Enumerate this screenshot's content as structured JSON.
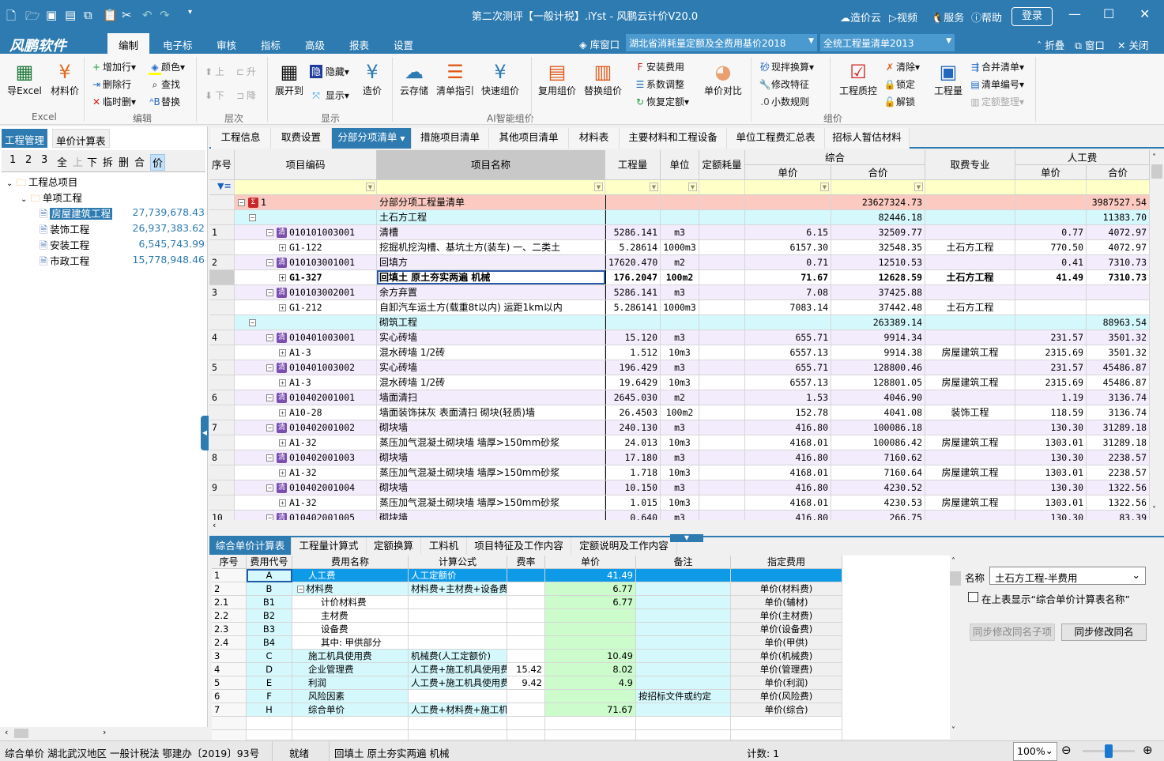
{
  "title": "第二次测评【一般计税】.iYst - 风鹏云计价V20.0",
  "quick_access": [
    "new-icon",
    "open-icon",
    "save-icon",
    "save-as-icon",
    "copy-icon",
    "paste-icon",
    "cut-icon",
    "undo-icon",
    "redo-icon",
    "customize-icon"
  ],
  "top_right": {
    "cloud": "造价云",
    "video": "视频",
    "service": "服务",
    "help": "帮助",
    "login": "登录"
  },
  "logo": "风鹏软件",
  "menu_tabs": [
    "编制",
    "电子标",
    "审核",
    "指标",
    "高级",
    "报表",
    "设置"
  ],
  "active_menu": "编制",
  "lib_window": "库窗口",
  "quota_combo": "湖北省消耗量定额及全费用基价2018",
  "bill_combo": "全统工程量清单2013",
  "ribbon_right": {
    "fold": "折叠",
    "window": "窗口",
    "close": "关闭"
  },
  "ribbon": {
    "export_excel": "导Excel",
    "material_price": "材料价",
    "group_excel": "Excel",
    "add_row": "增加行",
    "delete_row": "删除行",
    "temp_delete": "临时删",
    "color": "颜色",
    "find": "查找",
    "replace": "替换",
    "group_edit": "编辑",
    "up": "上",
    "down": "下",
    "raise": "升",
    "lower": "降",
    "group_level": "层次",
    "expand_to": "展开到",
    "hide": "隐藏",
    "display": "显示",
    "price": "造价",
    "group_display": "显示",
    "cloud_store": "云存储",
    "bill_guide": "清单指引",
    "quick_price": "快速组价",
    "group_ai": "AI智能组价",
    "reuse_price": "复用组价",
    "replace_price": "替换组价",
    "install_fee": "安装费用",
    "coef_adjust": "系数调整",
    "restore_quota": "恢复定额",
    "price_compare": "单价对比",
    "mix_convert": "现拌换算",
    "modify_feature": "修改特征",
    "decimal_rule": "小数规则",
    "quality_ctrl": "工程质控",
    "clear": "清除",
    "lock": "锁定",
    "unlock": "解锁",
    "quantity": "工程量",
    "merge_bill": "合并清单",
    "bill_number": "清单编号",
    "quota_tidy": "定额整理",
    "group_price": "组价"
  },
  "left": {
    "tabs": [
      "工程管理",
      "单价计算表"
    ],
    "tools": [
      "1",
      "2",
      "3",
      "全",
      "上",
      "下",
      "拆",
      "删",
      "合",
      "价"
    ],
    "tree": [
      {
        "label": "工程总项目",
        "level": 0,
        "type": "folder",
        "amount": ""
      },
      {
        "label": "单项工程",
        "level": 1,
        "type": "folder",
        "amount": ""
      },
      {
        "label": "房屋建筑工程",
        "level": 2,
        "type": "file",
        "amount": "27,739,678.43",
        "selected": true
      },
      {
        "label": "装饰工程",
        "level": 2,
        "type": "file",
        "amount": "26,937,383.62"
      },
      {
        "label": "安装工程",
        "level": 2,
        "type": "file",
        "amount": "6,545,743.99"
      },
      {
        "label": "市政工程",
        "level": 2,
        "type": "file",
        "amount": "15,778,948.46"
      }
    ]
  },
  "main_tabs": [
    "工程信息",
    "取费设置",
    "分部分项清单",
    "措施项目清单",
    "其他项目清单",
    "材料表",
    "主要材料和工程设备",
    "单位工程费汇总表",
    "招标人暂估材料"
  ],
  "active_main_tab": "分部分项清单",
  "grid": {
    "headers": {
      "seq": "序号",
      "code": "项目编码",
      "name": "项目名称",
      "qty": "工程量",
      "unit": "单位",
      "consume": "定额耗量",
      "composite": "综合",
      "labor": "人工费",
      "unit_price": "单价",
      "total": "合价",
      "fee_type": "取费专业"
    },
    "rows": [
      {
        "t": "total",
        "seq": "",
        "code": "1",
        "name": "分部分项工程量清单",
        "qty": "",
        "unit": "",
        "cu": "",
        "ct": "23627324.73",
        "fee": "",
        "lu": "",
        "lt": "3987527.54"
      },
      {
        "t": "sec",
        "seq": "",
        "code": "",
        "name": "土石方工程",
        "qty": "",
        "unit": "",
        "cu": "",
        "ct": "82446.18",
        "fee": "",
        "lu": "",
        "lt": "11383.70"
      },
      {
        "t": "qd",
        "seq": "1",
        "code": "010101003001",
        "name": "清槽",
        "qty": "5286.141",
        "unit": "m3",
        "cu": "6.15",
        "ct": "32509.77",
        "fee": "",
        "lu": "0.77",
        "lt": "4072.97"
      },
      {
        "t": "de",
        "seq": "",
        "code": "G1-122",
        "name": "挖掘机挖沟槽、基坑土方(装车) 一、二类土",
        "qty": "5.28614",
        "unit": "1000m3",
        "cu": "6157.30",
        "ct": "32548.35",
        "fee": "土石方工程",
        "lu": "770.50",
        "lt": "4072.97"
      },
      {
        "t": "qd",
        "seq": "2",
        "code": "010103001001",
        "name": "回填方",
        "qty": "17620.470",
        "unit": "m2",
        "cu": "0.71",
        "ct": "12510.53",
        "fee": "",
        "lu": "0.41",
        "lt": "7310.73"
      },
      {
        "t": "de",
        "sel": true,
        "seq": "",
        "code": "G1-327",
        "name": "回填土 原土夯实两遍 机械",
        "qty": "176.2047",
        "unit": "100m2",
        "cu": "71.67",
        "ct": "12628.59",
        "fee": "土石方工程",
        "lu": "41.49",
        "lt": "7310.73"
      },
      {
        "t": "qd",
        "seq": "3",
        "code": "010103002001",
        "name": "余方弃置",
        "qty": "5286.141",
        "unit": "m3",
        "cu": "7.08",
        "ct": "37425.88",
        "fee": "",
        "lu": "",
        "lt": ""
      },
      {
        "t": "de",
        "seq": "",
        "code": "G1-212",
        "name": "自卸汽车运土方(载重8t以内) 运距1km以内",
        "qty": "5.286141",
        "unit": "1000m3",
        "cu": "7083.14",
        "ct": "37442.48",
        "fee": "土石方工程",
        "lu": "",
        "lt": ""
      },
      {
        "t": "sec",
        "seq": "",
        "code": "",
        "name": "砌筑工程",
        "qty": "",
        "unit": "",
        "cu": "",
        "ct": "263389.14",
        "fee": "",
        "lu": "",
        "lt": "88963.54"
      },
      {
        "t": "qd",
        "seq": "4",
        "code": "010401003001",
        "name": "实心砖墙",
        "qty": "15.120",
        "unit": "m3",
        "cu": "655.71",
        "ct": "9914.34",
        "fee": "",
        "lu": "231.57",
        "lt": "3501.32"
      },
      {
        "t": "de",
        "seq": "",
        "code": "A1-3",
        "name": "混水砖墙 1/2砖",
        "qty": "1.512",
        "unit": "10m3",
        "cu": "6557.13",
        "ct": "9914.38",
        "fee": "房屋建筑工程",
        "lu": "2315.69",
        "lt": "3501.32"
      },
      {
        "t": "qd",
        "seq": "5",
        "code": "010401003002",
        "name": "实心砖墙",
        "qty": "196.429",
        "unit": "m3",
        "cu": "655.71",
        "ct": "128800.46",
        "fee": "",
        "lu": "231.57",
        "lt": "45486.87"
      },
      {
        "t": "de",
        "seq": "",
        "code": "A1-3",
        "name": "混水砖墙 1/2砖",
        "qty": "19.6429",
        "unit": "10m3",
        "cu": "6557.13",
        "ct": "128801.05",
        "fee": "房屋建筑工程",
        "lu": "2315.69",
        "lt": "45486.87"
      },
      {
        "t": "qd",
        "seq": "6",
        "code": "010402001001",
        "name": "墙面清扫",
        "qty": "2645.030",
        "unit": "m2",
        "cu": "1.53",
        "ct": "4046.90",
        "fee": "",
        "lu": "1.19",
        "lt": "3136.74"
      },
      {
        "t": "de",
        "seq": "",
        "code": "A10-28",
        "name": "墙面装饰抹灰 表面清扫 砌块(轻质)墙",
        "qty": "26.4503",
        "unit": "100m2",
        "cu": "152.78",
        "ct": "4041.08",
        "fee": "装饰工程",
        "lu": "118.59",
        "lt": "3136.74"
      },
      {
        "t": "qd",
        "seq": "7",
        "code": "010402001002",
        "name": "砌块墙",
        "qty": "240.130",
        "unit": "m3",
        "cu": "416.80",
        "ct": "100086.18",
        "fee": "",
        "lu": "130.30",
        "lt": "31289.18"
      },
      {
        "t": "de",
        "seq": "",
        "code": "A1-32",
        "name": "蒸压加气混凝土砌块墙 墙厚>150mm砂浆",
        "qty": "24.013",
        "unit": "10m3",
        "cu": "4168.01",
        "ct": "100086.42",
        "fee": "房屋建筑工程",
        "lu": "1303.01",
        "lt": "31289.18"
      },
      {
        "t": "qd",
        "seq": "8",
        "code": "010402001003",
        "name": "砌块墙",
        "qty": "17.180",
        "unit": "m3",
        "cu": "416.80",
        "ct": "7160.62",
        "fee": "",
        "lu": "130.30",
        "lt": "2238.57"
      },
      {
        "t": "de",
        "seq": "",
        "code": "A1-32",
        "name": "蒸压加气混凝土砌块墙 墙厚>150mm砂浆",
        "qty": "1.718",
        "unit": "10m3",
        "cu": "4168.01",
        "ct": "7160.64",
        "fee": "房屋建筑工程",
        "lu": "1303.01",
        "lt": "2238.57"
      },
      {
        "t": "qd",
        "seq": "9",
        "code": "010402001004",
        "name": "砌块墙",
        "qty": "10.150",
        "unit": "m3",
        "cu": "416.80",
        "ct": "4230.52",
        "fee": "",
        "lu": "130.30",
        "lt": "1322.56"
      },
      {
        "t": "de",
        "seq": "",
        "code": "A1-32",
        "name": "蒸压加气混凝土砌块墙 墙厚>150mm砂浆",
        "qty": "1.015",
        "unit": "10m3",
        "cu": "4168.01",
        "ct": "4230.53",
        "fee": "房屋建筑工程",
        "lu": "1303.01",
        "lt": "1322.56"
      },
      {
        "t": "qd",
        "seq": "10",
        "code": "010402001005",
        "name": "砌块墙",
        "qty": "0.640",
        "unit": "m3",
        "cu": "416.80",
        "ct": "266.75",
        "fee": "",
        "lu": "130.30",
        "lt": "83.39"
      }
    ]
  },
  "bottom_tabs": [
    "综合单价计算表",
    "工程量计算式",
    "定额换算",
    "工料机",
    "项目特征及工作内容",
    "定额说明及工作内容"
  ],
  "active_bottom_tab": "综合单价计算表",
  "calc": {
    "headers": [
      "序号",
      "费用代号",
      "费用名称",
      "计算公式",
      "费率",
      "单价",
      "备注",
      "指定费用"
    ],
    "rows": [
      {
        "seq": "1",
        "code": "A",
        "name": "人工费",
        "formula": "人工定额价",
        "rate": "",
        "price": "41.49",
        "note": "",
        "fee": "",
        "lvl": 0,
        "sel": true
      },
      {
        "seq": "2",
        "code": "B",
        "name": "材料费",
        "formula": "材料费+主材费+设备费",
        "rate": "",
        "price": "6.77",
        "note": "",
        "fee": "单价(材料费)",
        "lvl": 0,
        "exp": true
      },
      {
        "seq": "2.1",
        "code": "B1",
        "name": "计价材料费",
        "formula": "",
        "rate": "",
        "price": "6.77",
        "note": "",
        "fee": "单价(辅材)",
        "lvl": 1
      },
      {
        "seq": "2.2",
        "code": "B2",
        "name": "主材费",
        "formula": "",
        "rate": "",
        "price": "",
        "note": "",
        "fee": "单价(主材费)",
        "lvl": 1
      },
      {
        "seq": "2.3",
        "code": "B3",
        "name": "设备费",
        "formula": "",
        "rate": "",
        "price": "",
        "note": "",
        "fee": "单价(设备费)",
        "lvl": 1
      },
      {
        "seq": "2.4",
        "code": "B4",
        "name": "其中: 甲供部分",
        "formula": "",
        "rate": "",
        "price": "",
        "note": "",
        "fee": "单价(甲供)",
        "lvl": 1
      },
      {
        "seq": "3",
        "code": "C",
        "name": "施工机具使用费",
        "formula": "机械费(人工定额价)",
        "rate": "",
        "price": "10.49",
        "note": "",
        "fee": "单价(机械费)",
        "lvl": 0
      },
      {
        "seq": "4",
        "code": "D",
        "name": "企业管理费",
        "formula": "人工费+施工机具使用费",
        "rate": "15.42",
        "price": "8.02",
        "note": "",
        "fee": "单价(管理费)",
        "lvl": 0
      },
      {
        "seq": "5",
        "code": "E",
        "name": "利润",
        "formula": "人工费+施工机具使用费",
        "rate": "9.42",
        "price": "4.9",
        "note": "",
        "fee": "单价(利润)",
        "lvl": 0
      },
      {
        "seq": "6",
        "code": "F",
        "name": "风险因素",
        "formula": "",
        "rate": "",
        "price": "",
        "note": "按招标文件或约定",
        "fee": "单价(风险费)",
        "lvl": 0
      },
      {
        "seq": "7",
        "code": "H",
        "name": "综合单价",
        "formula": "人工费+材料费+施工机具使用费",
        "rate": "",
        "price": "71.67",
        "note": "",
        "fee": "单价(综合)",
        "lvl": 0
      }
    ]
  },
  "right_panel": {
    "name_label": "名称",
    "name_value": "土石方工程-半费用",
    "checkbox_label": "在上表显示“综合单价计算表名称”",
    "checked": false,
    "sync_children": "同步修改同名子项",
    "sync_same": "同步修改同名"
  },
  "status": {
    "left": "综合单价 湖北武汉地区 一般计税法 鄂建办〔2019〕93号",
    "ready": "就绪",
    "current": "回填土 原土夯实两遍 机械",
    "count": "计数: 1",
    "zoom": "100%",
    "zoom_level": 0.5
  },
  "colors": {
    "accent": "#2d7bb1",
    "total_row": "#fccac0",
    "section_row": "#d4f8fc",
    "bill_row": "#f3ecfc",
    "filter_row": "#ffffc8",
    "price_col": "#ccfccc",
    "selected": "#0f9ae8"
  }
}
